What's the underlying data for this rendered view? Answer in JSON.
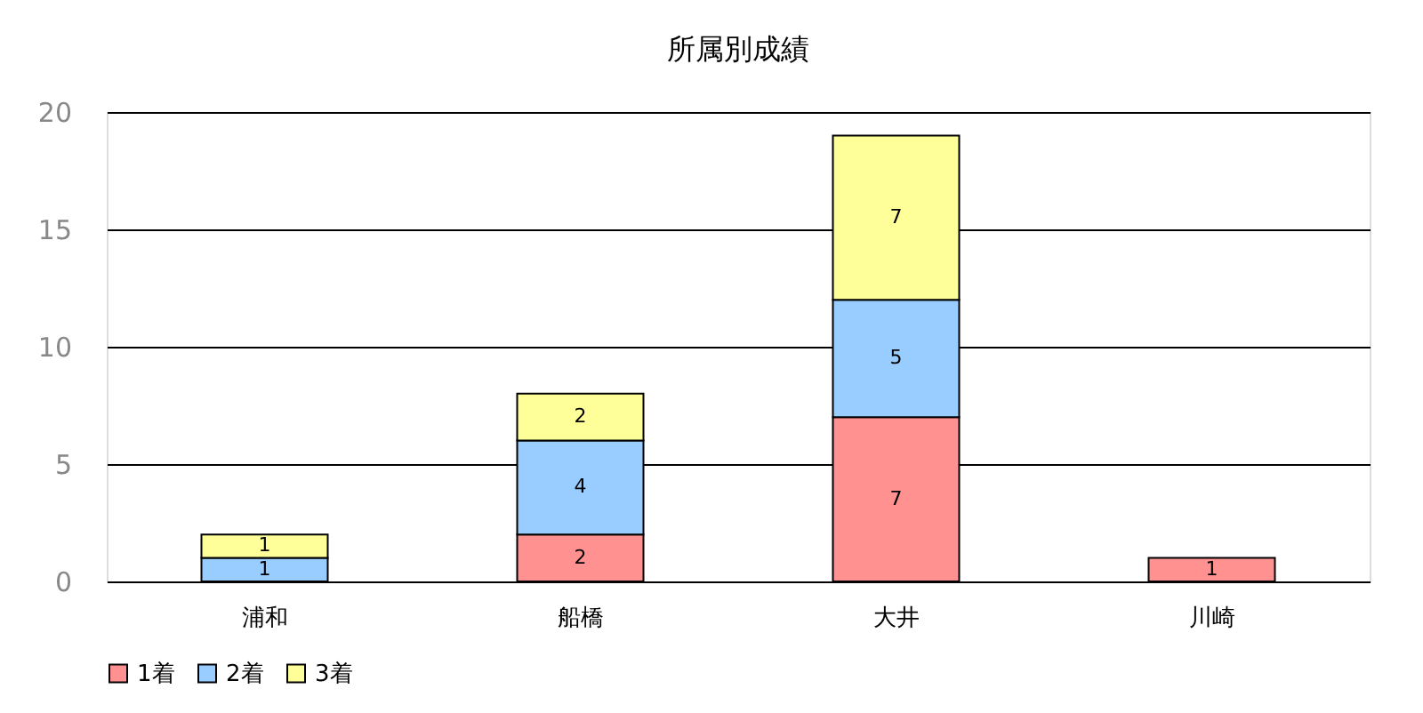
{
  "chart_data": {
    "type": "bar",
    "title": "所属別成績",
    "stacked": true,
    "data_labels": true,
    "grid": "y",
    "legend": "bottom",
    "categories": [
      "浦和",
      "船橋",
      "大井",
      "川崎"
    ],
    "ylim": [
      0,
      20
    ],
    "yticks": [
      0,
      5,
      10,
      15,
      20
    ],
    "series": [
      {
        "name": "1着",
        "color": "#ff9191",
        "values": [
          null,
          2,
          7,
          1
        ]
      },
      {
        "name": "2着",
        "color": "#99ccff",
        "values": [
          1,
          4,
          5,
          null
        ]
      },
      {
        "name": "3着",
        "color": "#ffff99",
        "values": [
          1,
          2,
          7,
          null
        ]
      }
    ]
  }
}
